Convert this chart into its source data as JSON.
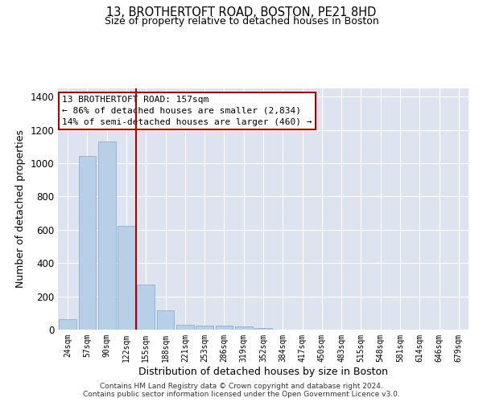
{
  "title_line1": "13, BROTHERTOFT ROAD, BOSTON, PE21 8HD",
  "title_line2": "Size of property relative to detached houses in Boston",
  "xlabel": "Distribution of detached houses by size in Boston",
  "ylabel": "Number of detached properties",
  "footer_line1": "Contains HM Land Registry data © Crown copyright and database right 2024.",
  "footer_line2": "Contains public sector information licensed under the Open Government Licence v3.0.",
  "annotation_line1": "13 BROTHERTOFT ROAD: 157sqm",
  "annotation_line2": "← 86% of detached houses are smaller (2,834)",
  "annotation_line3": "14% of semi-detached houses are larger (460) →",
  "bar_color": "#b8cfe8",
  "bar_edge_color": "#8aaed0",
  "vline_color": "#aa0000",
  "vline_x_index": 3.5,
  "bg_color": "#dde4f0",
  "grid_color": "#ffffff",
  "ann_box_edge_color": "#aa0000",
  "categories": [
    "24sqm",
    "57sqm",
    "90sqm",
    "122sqm",
    "155sqm",
    "188sqm",
    "221sqm",
    "253sqm",
    "286sqm",
    "319sqm",
    "352sqm",
    "384sqm",
    "417sqm",
    "450sqm",
    "483sqm",
    "515sqm",
    "548sqm",
    "581sqm",
    "614sqm",
    "646sqm",
    "679sqm"
  ],
  "values": [
    65,
    1045,
    1130,
    625,
    270,
    115,
    28,
    22,
    25,
    18,
    10,
    0,
    0,
    0,
    0,
    0,
    0,
    0,
    0,
    0,
    0
  ],
  "ylim": [
    0,
    1450
  ],
  "yticks": [
    0,
    200,
    400,
    600,
    800,
    1000,
    1200,
    1400
  ]
}
